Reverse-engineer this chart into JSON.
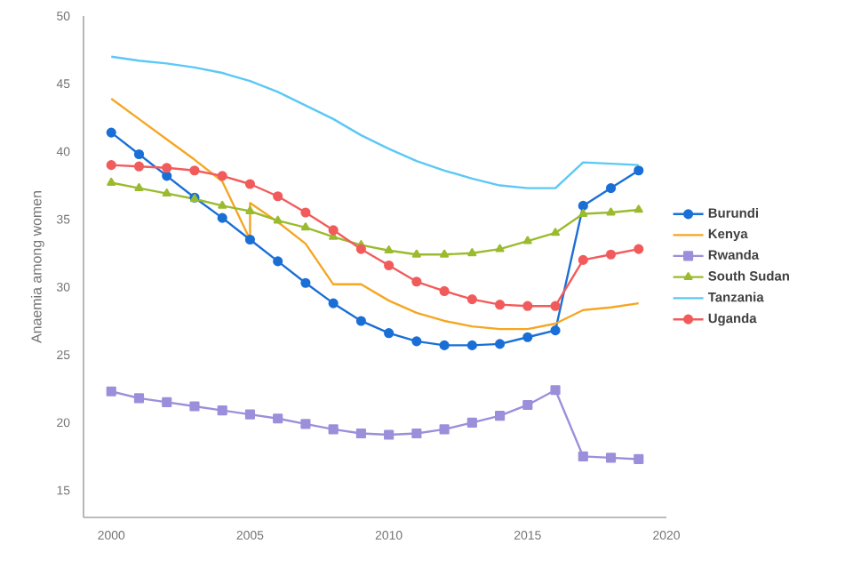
{
  "chart_data": {
    "type": "line",
    "ylabel": "Anaemia among women",
    "x": [
      2000,
      2001,
      2002,
      2003,
      2004,
      2005,
      2006,
      2007,
      2008,
      2009,
      2010,
      2011,
      2012,
      2013,
      2014,
      2015,
      2016,
      2017,
      2018,
      2019
    ],
    "xlim": [
      1999,
      2020
    ],
    "xticks": [
      2000,
      2005,
      2010,
      2015,
      2020
    ],
    "ylim": [
      13,
      50
    ],
    "yticks": [
      15,
      20,
      25,
      30,
      35,
      40,
      45,
      50
    ],
    "grid": false,
    "legend": "right",
    "line_style": "solid",
    "series": [
      {
        "name": "Burundi",
        "color": "#1a6fd6",
        "marker": "circle",
        "values": [
          41.4,
          39.8,
          38.2,
          36.6,
          35.1,
          33.5,
          31.9,
          30.3,
          28.8,
          27.5,
          26.6,
          26.0,
          25.7,
          25.7,
          25.8,
          26.3,
          26.8,
          36.0,
          37.3,
          38.6
        ]
      },
      {
        "name": "Kenya",
        "color": "#f5a623",
        "marker": "none",
        "x": [
          2000,
          2001,
          2002,
          2003,
          2004,
          2005,
          2005,
          2006,
          2007,
          2008,
          2009,
          2010,
          2011,
          2012,
          2013,
          2014,
          2015,
          2016,
          2017,
          2018,
          2019
        ],
        "values": [
          43.9,
          42.4,
          40.9,
          39.4,
          37.8,
          33.5,
          36.2,
          34.8,
          33.2,
          30.2,
          30.2,
          29.0,
          28.1,
          27.5,
          27.1,
          26.9,
          26.9,
          27.3,
          28.3,
          28.5,
          28.8
        ]
      },
      {
        "name": "Rwanda",
        "color": "#9b8fdb",
        "marker": "square",
        "values": [
          22.3,
          21.8,
          21.5,
          21.2,
          20.9,
          20.6,
          20.3,
          19.9,
          19.5,
          19.2,
          19.1,
          19.2,
          19.5,
          20.0,
          20.5,
          21.3,
          22.4,
          17.5,
          17.4,
          17.3
        ]
      },
      {
        "name": "South Sudan",
        "color": "#9bbb2e",
        "marker": "triangle",
        "values": [
          37.7,
          37.3,
          36.9,
          36.5,
          36.0,
          35.6,
          34.9,
          34.4,
          33.7,
          33.1,
          32.7,
          32.4,
          32.4,
          32.5,
          32.8,
          33.4,
          34.0,
          35.4,
          35.5,
          35.7
        ]
      },
      {
        "name": "Tanzania",
        "color": "#5bc8f5",
        "marker": "none",
        "values": [
          47.0,
          46.7,
          46.5,
          46.2,
          45.8,
          45.2,
          44.4,
          43.4,
          42.4,
          41.2,
          40.2,
          39.3,
          38.6,
          38.0,
          37.5,
          37.3,
          37.3,
          39.2,
          39.1,
          39.0
        ]
      },
      {
        "name": "Uganda",
        "color": "#f25b5b",
        "marker": "circle",
        "values": [
          39.0,
          38.9,
          38.8,
          38.6,
          38.2,
          37.6,
          36.7,
          35.5,
          34.2,
          32.8,
          31.6,
          30.4,
          29.7,
          29.1,
          28.7,
          28.6,
          28.6,
          32.0,
          32.4,
          32.8
        ]
      }
    ]
  }
}
